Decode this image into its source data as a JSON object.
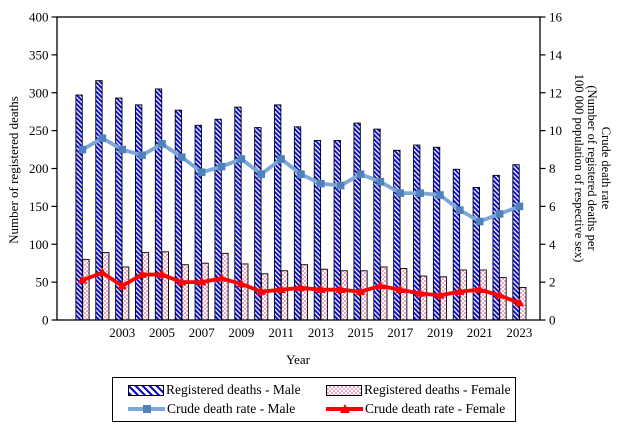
{
  "colors": {
    "male_bar_hatch": "#0b0bd0",
    "female_bar_dot": "#f2a6c6",
    "male_line": "#7da7d9",
    "male_marker": "#4f81bd",
    "female_line": "#fe0000",
    "bar_border": "#000000",
    "axis": "#000000",
    "background": "#ffffff"
  },
  "chart_data": {
    "type": "combo-bar-line",
    "title": "",
    "xlabel": "Year",
    "grid": false,
    "legend_position": "bottom",
    "x": [
      2001,
      2002,
      2003,
      2004,
      2005,
      2006,
      2007,
      2008,
      2009,
      2010,
      2011,
      2012,
      2013,
      2014,
      2015,
      2016,
      2017,
      2018,
      2019,
      2020,
      2021,
      2022,
      2023
    ],
    "x_axis_tick_labels": [
      "2003",
      "2005",
      "2007",
      "2009",
      "2011",
      "2013",
      "2015",
      "2017",
      "2019",
      "2021",
      "2023"
    ],
    "left_axis": {
      "label": "Number of registered deaths",
      "range": [
        0,
        400
      ],
      "tick_step": 50,
      "tick_labels": [
        "0",
        "50",
        "100",
        "150",
        "200",
        "250",
        "300",
        "350",
        "400"
      ]
    },
    "right_axis": {
      "label_lines": [
        "Crude death rate",
        "(Number of registered deaths per",
        "100 000 population of respective sex)"
      ],
      "range": [
        0,
        16
      ],
      "tick_step": 2,
      "tick_labels": [
        "0",
        "2",
        "4",
        "6",
        "8",
        "10",
        "12",
        "14",
        "16"
      ]
    },
    "series": [
      {
        "name": "Registered deaths - Male",
        "type": "bar",
        "axis": "left",
        "style": "blue-diagonal-hatch",
        "values": [
          297,
          316,
          293,
          284,
          305,
          277,
          257,
          265,
          281,
          254,
          284,
          255,
          237,
          237,
          260,
          252,
          224,
          231,
          228,
          199,
          175,
          191,
          205
        ]
      },
      {
        "name": "Registered deaths - Female",
        "type": "bar",
        "axis": "left",
        "style": "pink-checker-dots",
        "values": [
          80,
          89,
          70,
          89,
          90,
          73,
          75,
          88,
          74,
          61,
          65,
          73,
          67,
          65,
          65,
          70,
          68,
          58,
          57,
          66,
          66,
          56,
          43
        ]
      },
      {
        "name": "Crude death rate - Male",
        "type": "line",
        "axis": "right",
        "marker": "square",
        "values": [
          9.0,
          9.6,
          9.0,
          8.7,
          9.3,
          8.6,
          7.8,
          8.1,
          8.5,
          7.7,
          8.5,
          7.7,
          7.2,
          7.1,
          7.7,
          7.3,
          6.7,
          6.7,
          6.6,
          5.8,
          5.2,
          5.6,
          6.0
        ]
      },
      {
        "name": "Crude death rate - Female",
        "type": "line",
        "axis": "right",
        "marker": "triangle",
        "values": [
          2.1,
          2.5,
          1.8,
          2.4,
          2.4,
          2.0,
          2.0,
          2.2,
          1.9,
          1.5,
          1.6,
          1.7,
          1.6,
          1.6,
          1.5,
          1.8,
          1.6,
          1.4,
          1.3,
          1.5,
          1.6,
          1.3,
          0.9
        ]
      }
    ]
  }
}
